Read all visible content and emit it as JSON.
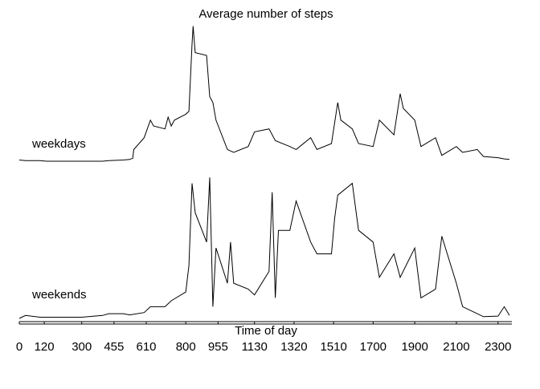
{
  "chart_data": {
    "type": "line",
    "title": "Average number of steps",
    "x_label": "Time of day",
    "xlim": [
      0,
      2355
    ],
    "ylim": [
      0,
      250
    ],
    "xticks": [
      0,
      120,
      300,
      455,
      610,
      800,
      955,
      1130,
      1320,
      1510,
      1700,
      1900,
      2100,
      2300
    ],
    "series": [
      {
        "name": "weekdays",
        "color": "#000000",
        "x": [
          0,
          30,
          100,
          130,
          200,
          230,
          300,
          330,
          400,
          430,
          500,
          530,
          545,
          550,
          600,
          615,
          630,
          645,
          700,
          715,
          730,
          745,
          800,
          815,
          830,
          835,
          845,
          900,
          915,
          930,
          945,
          1000,
          1030,
          1100,
          1130,
          1200,
          1230,
          1300,
          1330,
          1400,
          1430,
          1500,
          1530,
          1545,
          1600,
          1630,
          1700,
          1730,
          1800,
          1830,
          1845,
          1900,
          1930,
          2000,
          2030,
          2100,
          2130,
          2200,
          2230,
          2300,
          2330,
          2355
        ],
        "values": [
          2,
          1,
          1,
          0,
          0,
          0,
          0,
          0,
          0,
          1,
          2,
          3,
          5,
          20,
          40,
          55,
          70,
          60,
          55,
          75,
          60,
          70,
          80,
          85,
          200,
          230,
          185,
          180,
          110,
          100,
          70,
          20,
          15,
          25,
          50,
          55,
          35,
          25,
          20,
          40,
          20,
          30,
          100,
          70,
          55,
          30,
          25,
          70,
          45,
          115,
          90,
          70,
          25,
          40,
          10,
          25,
          15,
          20,
          8,
          6,
          4,
          3
        ]
      },
      {
        "name": "weekends",
        "color": "#000000",
        "x": [
          0,
          30,
          100,
          200,
          300,
          400,
          430,
          500,
          530,
          600,
          630,
          700,
          730,
          800,
          815,
          830,
          845,
          900,
          915,
          930,
          945,
          1000,
          1015,
          1030,
          1100,
          1130,
          1200,
          1215,
          1230,
          1245,
          1300,
          1330,
          1400,
          1430,
          1500,
          1515,
          1530,
          1600,
          1630,
          1700,
          1730,
          1800,
          1830,
          1900,
          1930,
          2000,
          2030,
          2100,
          2130,
          2200,
          2230,
          2300,
          2330,
          2355
        ],
        "values": [
          0,
          5,
          2,
          2,
          2,
          5,
          8,
          8,
          6,
          10,
          20,
          20,
          30,
          45,
          90,
          230,
          180,
          130,
          240,
          20,
          120,
          60,
          130,
          60,
          50,
          40,
          80,
          215,
          35,
          150,
          150,
          200,
          130,
          110,
          110,
          170,
          210,
          230,
          150,
          130,
          70,
          110,
          70,
          120,
          35,
          50,
          140,
          60,
          20,
          8,
          3,
          4,
          20,
          5
        ]
      }
    ]
  }
}
